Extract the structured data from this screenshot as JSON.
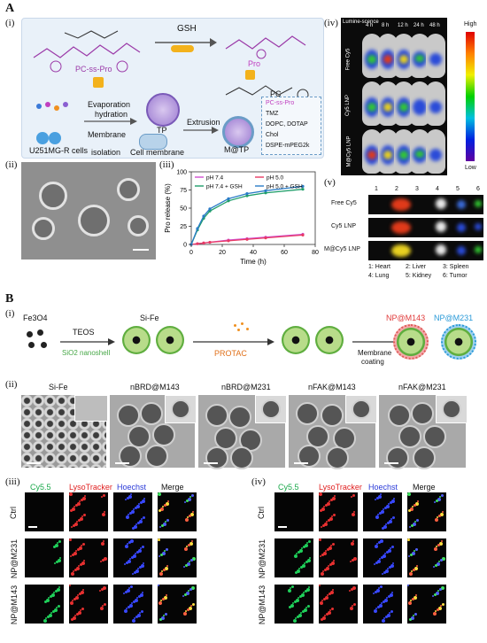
{
  "panels": {
    "A": "A",
    "B": "B"
  },
  "sub": {
    "i": "(i)",
    "ii": "(ii)",
    "iii": "(iii)",
    "iv": "(iv)",
    "v": "(v)"
  },
  "schemeA": {
    "gsh": "GSH",
    "pc_ss_pro": "PC-ss-Pro",
    "pro": "Pro",
    "pc": "PC",
    "evap": "Evaporation",
    "hydration": "hydration",
    "tp": "TP",
    "membrane": "Membrane",
    "isolation": "isolation",
    "cells": "U251MG-R cells",
    "cell_membrane": "Cell membrane",
    "extrusion": "Extrusion",
    "mtp": "M@TP",
    "legend": [
      "PC-ss-Pro",
      "TMZ",
      "DOPC, DOTAP",
      "Chol",
      "DSPE-mPEG2k"
    ]
  },
  "imaging": {
    "cols": [
      "Lumine-scence",
      "4 h",
      "8 h",
      "12 h",
      "24 h",
      "48 h"
    ],
    "rows": [
      "Free Cy5",
      "Cy5 LNP",
      "M@Cy5 LNP"
    ],
    "scale_high": "High",
    "scale_low": "Low"
  },
  "organs": {
    "cols": [
      "1",
      "2",
      "3",
      "4",
      "5",
      "6"
    ],
    "rows": [
      "Free Cy5",
      "Cy5 LNP",
      "M@Cy5 LNP"
    ],
    "legend": [
      "1: Heart",
      "2: Liver",
      "3: Spleen",
      "4: Lung",
      "5: Kidney",
      "6: Tumor"
    ]
  },
  "chart_data": {
    "type": "line",
    "xlabel": "Time (h)",
    "ylabel": "Pro release (%)",
    "xlim": [
      0,
      80
    ],
    "ylim": [
      0,
      100
    ],
    "xticks": [
      0,
      20,
      40,
      60,
      80
    ],
    "yticks": [
      0,
      25,
      50,
      75,
      100
    ],
    "x": [
      0,
      4,
      8,
      12,
      24,
      36,
      48,
      72
    ],
    "series": [
      {
        "name": "pH 7.4",
        "color": "#d14fd1",
        "values": [
          0,
          1,
          2,
          3,
          6,
          8,
          10,
          14
        ]
      },
      {
        "name": "pH 5.0",
        "color": "#e83a63",
        "values": [
          0,
          1,
          2,
          3,
          5,
          7,
          9,
          13
        ]
      },
      {
        "name": "pH 7.4 + GSH",
        "color": "#1f9e6a",
        "values": [
          0,
          20,
          36,
          46,
          60,
          67,
          71,
          76
        ]
      },
      {
        "name": "pH 5.0 + GSH",
        "color": "#2a7cc7",
        "values": [
          0,
          22,
          39,
          49,
          63,
          70,
          74,
          80
        ]
      }
    ]
  },
  "schemeB": {
    "fe3o4": "Fe3O4",
    "teos": "TEOS",
    "si_fe": "Si-Fe",
    "nanoshell": "SiO2 nanoshell",
    "protac": "PROTAC",
    "coat1": "Membrane",
    "coat2": "coating",
    "np143": "NP@M143",
    "np231": "NP@M231"
  },
  "tem": [
    "Si-Fe",
    "nBRD@M143",
    "nBRD@M231",
    "nFAK@M143",
    "nFAK@M231"
  ],
  "confocal": {
    "cols": [
      "Cy5.5",
      "LysoTracker",
      "Hoechst",
      "Merge"
    ],
    "rows": [
      "Ctrl",
      "NP@M231",
      "NP@M143"
    ]
  }
}
